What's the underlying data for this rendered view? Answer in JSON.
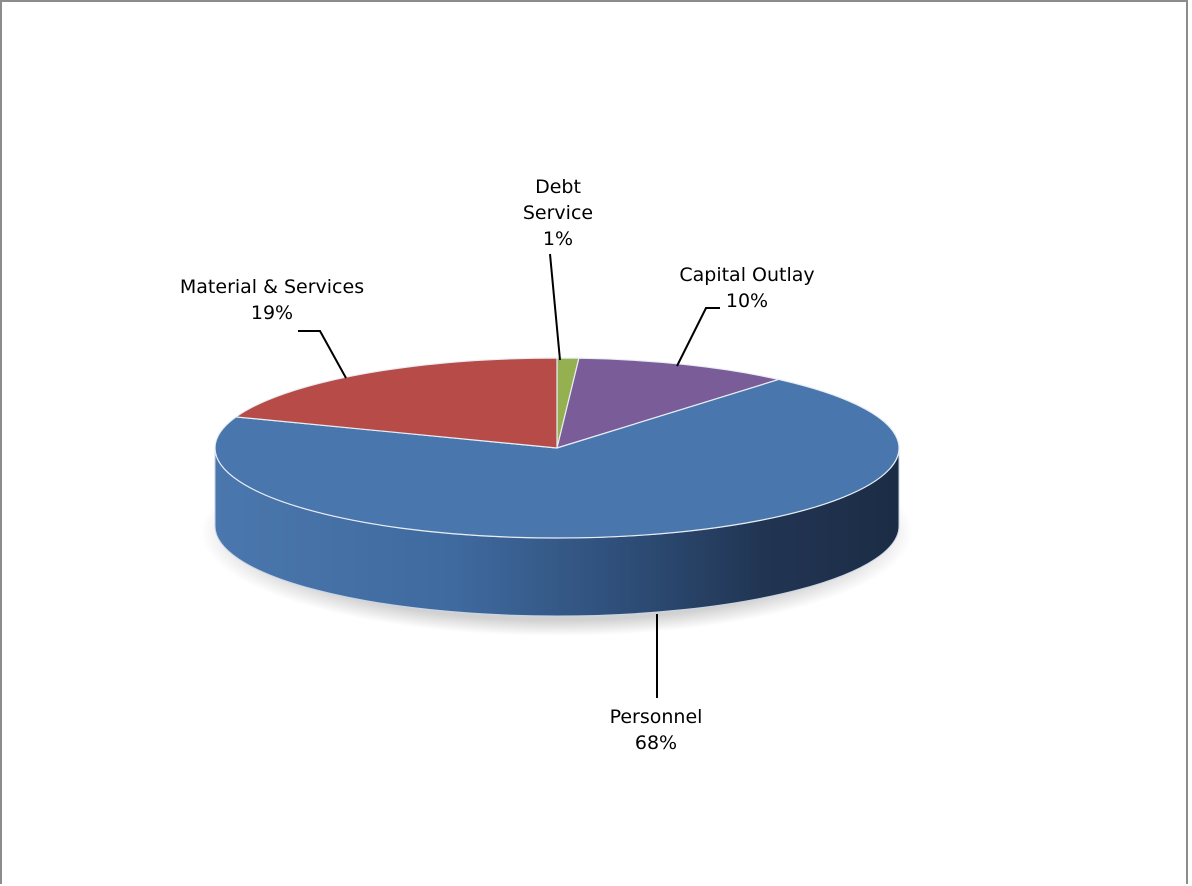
{
  "chart_data": {
    "type": "pie",
    "style": "3d",
    "title": "",
    "slices": [
      {
        "name": "Personnel",
        "value": 68,
        "label": "68%",
        "color": "#4a76ae"
      },
      {
        "name": "Material & Services",
        "value": 19,
        "label": "19%",
        "color": "#b64b47"
      },
      {
        "name": "Debt Service",
        "value": 1,
        "label": "1%",
        "color": "#94b050"
      },
      {
        "name": "Capital Outlay",
        "value": 10,
        "label": "10%",
        "color": "#7a5c99"
      }
    ],
    "labels": {
      "personnel_name": "Personnel",
      "personnel_pct": "68%",
      "material_name": "Material & Services",
      "material_pct": "19%",
      "debt_name_1": "Debt",
      "debt_name_2": "Service",
      "debt_pct": "1%",
      "capital_name": "Capital Outlay",
      "capital_pct": "10%"
    },
    "legend": "none",
    "data_labels": "outside with leader lines"
  }
}
